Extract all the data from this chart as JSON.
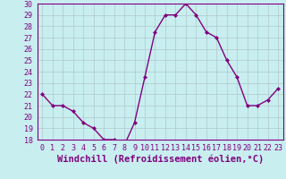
{
  "x": [
    0,
    1,
    2,
    3,
    4,
    5,
    6,
    7,
    8,
    9,
    10,
    11,
    12,
    13,
    14,
    15,
    16,
    17,
    18,
    19,
    20,
    21,
    22,
    23
  ],
  "y": [
    22,
    21,
    21,
    20.5,
    19.5,
    19,
    18,
    18,
    17.5,
    19.5,
    23.5,
    27.5,
    29,
    29,
    30,
    29,
    27.5,
    27,
    25,
    23.5,
    21,
    21,
    21.5,
    22.5
  ],
  "line_color": "#800080",
  "marker": "D",
  "marker_size": 2,
  "bg_color": "#c8eef0",
  "grid_color": "#b0c8cc",
  "xlabel": "Windchill (Refroidissement éolien,°C)",
  "xlabel_fontsize": 7.5,
  "ylim": [
    18,
    30
  ],
  "yticks": [
    18,
    19,
    20,
    21,
    22,
    23,
    24,
    25,
    26,
    27,
    28,
    29,
    30
  ],
  "xticks": [
    0,
    1,
    2,
    3,
    4,
    5,
    6,
    7,
    8,
    9,
    10,
    11,
    12,
    13,
    14,
    15,
    16,
    17,
    18,
    19,
    20,
    21,
    22,
    23
  ],
  "tick_fontsize": 6,
  "line_width": 1.0
}
